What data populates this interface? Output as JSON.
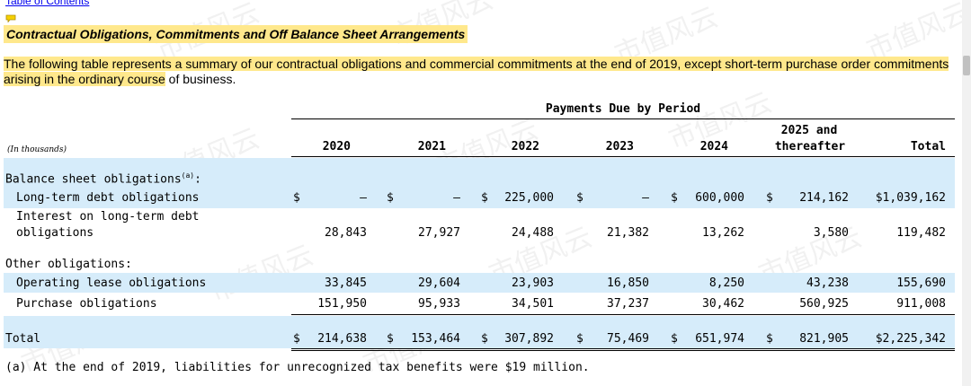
{
  "toc_link": "Table of Contents",
  "heading": "Contractual Obligations, Commitments and Off Balance Sheet Arrangements",
  "intro_highlighted": "The following table represents a summary of our contractual obligations and commercial commitments at the end of 2019, except short-term purchase order commitments arising in the ordinary course",
  "intro_rest": " of business.",
  "table": {
    "group_header": "Payments Due by Period",
    "units_label": "(In thousands)",
    "columns": [
      "2020",
      "2021",
      "2022",
      "2023",
      "2024",
      "2025 and",
      "thereafter",
      "Total"
    ],
    "currency_symbol": "$",
    "dash": "—",
    "sections": {
      "balance_sheet": "Balance sheet obligations",
      "balance_sheet_note": "(a)",
      "colon": ":",
      "other": "Other obligations:"
    },
    "rows": {
      "ltd": {
        "label": "Long-term debt obligations",
        "values": [
          "—",
          "—",
          "225,000",
          "—",
          "600,000",
          "214,162",
          "$1,039,162"
        ]
      },
      "interest": {
        "label_1": "Interest on long-term debt",
        "label_2": "obligations",
        "values": [
          "28,843",
          "27,927",
          "24,488",
          "21,382",
          "13,262",
          "3,580",
          "119,482"
        ]
      },
      "lease": {
        "label": "Operating lease obligations",
        "values": [
          "33,845",
          "29,604",
          "23,903",
          "16,850",
          "8,250",
          "43,238",
          "155,690"
        ]
      },
      "purchase": {
        "label": "Purchase obligations",
        "values": [
          "151,950",
          "95,933",
          "34,501",
          "37,237",
          "30,462",
          "560,925",
          "911,008"
        ]
      },
      "total": {
        "label": "Total",
        "values": [
          "214,638",
          "153,464",
          "307,892",
          "75,469",
          "651,974",
          "821,905",
          "$2,225,342"
        ]
      }
    }
  },
  "footnote": "(a) At the end of 2019, liabilities for unrecognized tax benefits were $19 million.",
  "watermark_text": "市值风云",
  "colors": {
    "highlight": "#ffe88c",
    "row_blue": "#d6ecfa",
    "link": "#0000ee"
  }
}
